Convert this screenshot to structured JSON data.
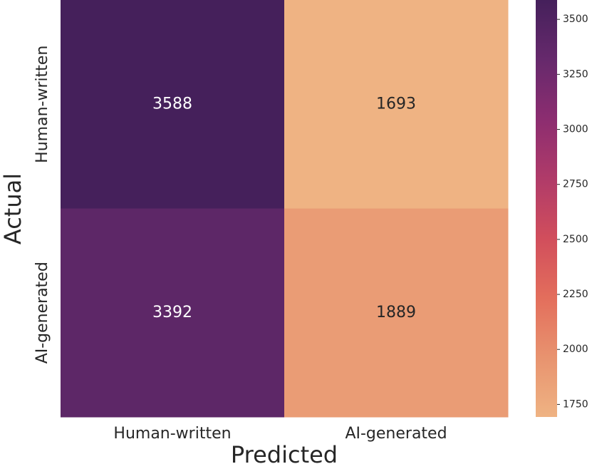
{
  "chart_data": {
    "type": "heatmap",
    "x_label": "Predicted",
    "y_label": "Actual",
    "x_categories": [
      "Human-written",
      "AI-generated"
    ],
    "y_categories": [
      "Human-written",
      "AI-generated"
    ],
    "values": [
      [
        3588,
        1693
      ],
      [
        3392,
        1889
      ]
    ],
    "colormap": [
      "#efb383",
      "#e8936f",
      "#e36e5c",
      "#d14e5c",
      "#b03b69",
      "#8c2d70",
      "#66296c",
      "#45205b"
    ],
    "zlim": [
      1693,
      3588
    ],
    "zticks": [
      1750,
      2000,
      2250,
      2500,
      2750,
      3000,
      3250,
      3500
    ]
  }
}
